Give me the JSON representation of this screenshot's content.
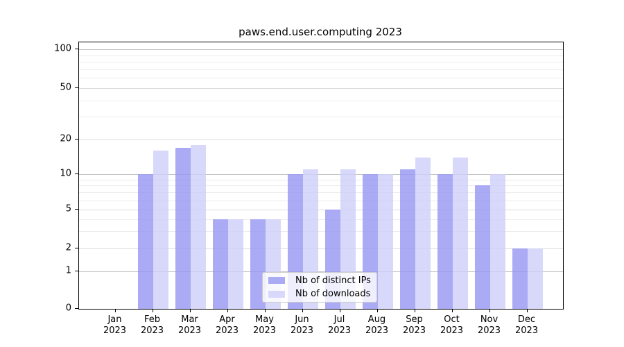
{
  "chart_data": {
    "type": "bar",
    "title": "paws.end.user.computing 2023",
    "categories": [
      "Jan 2023",
      "Feb 2023",
      "Mar 2023",
      "Apr 2023",
      "May 2023",
      "Jun 2023",
      "Jul 2023",
      "Aug 2023",
      "Sep 2023",
      "Oct 2023",
      "Nov 2023",
      "Dec 2023"
    ],
    "series": [
      {
        "name": "Nb of distinct IPs",
        "color": "#aaaaf5",
        "values": [
          0,
          10,
          17,
          4,
          4,
          10,
          5,
          10,
          11,
          10,
          8,
          2
        ]
      },
      {
        "name": "Nb of downloads",
        "color": "#d8d8fa",
        "values": [
          0,
          16,
          18,
          4,
          4,
          11,
          11,
          10,
          14,
          14,
          10,
          2
        ]
      }
    ],
    "xlabel": "",
    "ylabel": "",
    "y_axis": {
      "scale": "symlog",
      "ticks": [
        0,
        1,
        2,
        5,
        10,
        20,
        50,
        100
      ],
      "ylim": [
        0,
        110
      ]
    },
    "grid": true,
    "legend_position": "lower center"
  },
  "colors": {
    "grid_major": "#c2c2c2",
    "grid_mid": "#dcdcdc",
    "grid_minor": "#ececec",
    "spine": "#000000",
    "background": "#ffffff"
  }
}
